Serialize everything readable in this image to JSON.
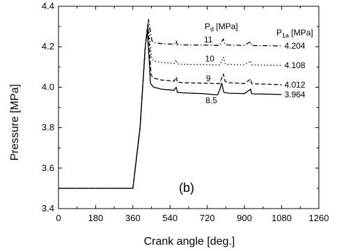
{
  "chart_data": {
    "type": "line",
    "xlabel": "Crank angle [deg.]",
    "ylabel": "Pressure [MPa]",
    "xlim": [
      0,
      1260
    ],
    "ylim": [
      3.4,
      4.4
    ],
    "xticks": [
      0,
      180,
      360,
      540,
      720,
      900,
      1080,
      1260
    ],
    "yticks": [
      3.4,
      3.6,
      3.8,
      4.0,
      4.2,
      4.4
    ],
    "xtick_labels": [
      "0",
      "180",
      "360",
      "540",
      "720",
      "900",
      "1080",
      "1260"
    ],
    "ytick_labels": [
      "3.4",
      "3.6",
      "3.8",
      "4.0",
      "4.2",
      "4.4"
    ],
    "grid": false,
    "panel_label": "(b)",
    "pd_header": "P",
    "pd_header_sub": "d",
    "pd_header_unit": " [MPa]",
    "p1a_header": "P",
    "p1a_header_sub": "1a",
    "p1a_header_unit": " [MPa]",
    "series": [
      {
        "pd_label": "8.5",
        "p1a_label": "3.964",
        "style": "solid",
        "x": [
          0,
          360,
          395,
          420,
          430,
          438,
          445,
          460,
          500,
          560,
          570,
          575,
          600,
          700,
          770,
          780,
          790,
          800,
          810,
          830,
          900,
          930,
          935,
          940,
          1000,
          1080
        ],
        "y": [
          3.5,
          3.5,
          3.8,
          4.2,
          4.28,
          4.15,
          4.02,
          4.0,
          3.99,
          3.985,
          4.0,
          3.975,
          3.972,
          3.968,
          3.962,
          3.985,
          4.02,
          3.975,
          3.972,
          3.97,
          3.968,
          3.99,
          3.968,
          3.967,
          3.966,
          3.964
        ]
      },
      {
        "pd_label": "9",
        "p1a_label": "4.012",
        "style": "dashed",
        "x": [
          0,
          360,
          395,
          420,
          432,
          440,
          448,
          460,
          500,
          560,
          570,
          575,
          600,
          700,
          780,
          790,
          798,
          806,
          815,
          830,
          900,
          930,
          935,
          940,
          1000,
          1080
        ],
        "y": [
          3.5,
          3.5,
          3.8,
          4.2,
          4.31,
          4.2,
          4.06,
          4.045,
          4.035,
          4.03,
          4.05,
          4.025,
          4.022,
          4.02,
          4.018,
          4.045,
          4.065,
          4.03,
          4.024,
          4.022,
          4.018,
          4.04,
          4.018,
          4.017,
          4.015,
          4.012
        ]
      },
      {
        "pd_label": "10",
        "p1a_label": "4.108",
        "style": "dotted",
        "x": [
          0,
          360,
          395,
          420,
          434,
          442,
          450,
          460,
          500,
          560,
          570,
          575,
          600,
          700,
          780,
          790,
          798,
          806,
          815,
          830,
          900,
          930,
          935,
          940,
          1000,
          1080
        ],
        "y": [
          3.5,
          3.5,
          3.8,
          4.2,
          4.32,
          4.24,
          4.15,
          4.13,
          4.122,
          4.118,
          4.135,
          4.115,
          4.113,
          4.112,
          4.11,
          4.13,
          4.148,
          4.118,
          4.113,
          4.112,
          4.11,
          4.13,
          4.11,
          4.11,
          4.109,
          4.108
        ]
      },
      {
        "pd_label": "11",
        "p1a_label": "4.204",
        "style": "dashdot",
        "x": [
          0,
          360,
          395,
          420,
          436,
          444,
          452,
          462,
          500,
          560,
          570,
          575,
          600,
          700,
          780,
          790,
          798,
          806,
          815,
          830,
          900,
          930,
          935,
          940,
          1000,
          1080
        ],
        "y": [
          3.5,
          3.5,
          3.8,
          4.2,
          4.335,
          4.28,
          4.23,
          4.22,
          4.215,
          4.212,
          4.228,
          4.21,
          4.209,
          4.208,
          4.207,
          4.225,
          4.238,
          4.212,
          4.209,
          4.208,
          4.207,
          4.225,
          4.206,
          4.206,
          4.205,
          4.204
        ]
      }
    ]
  },
  "annotations": {
    "pd_positions": [
      {
        "x": 740,
        "y": 3.935
      },
      {
        "x": 725,
        "y": 4.042
      },
      {
        "x": 732,
        "y": 4.14
      },
      {
        "x": 725,
        "y": 4.235
      }
    ]
  }
}
